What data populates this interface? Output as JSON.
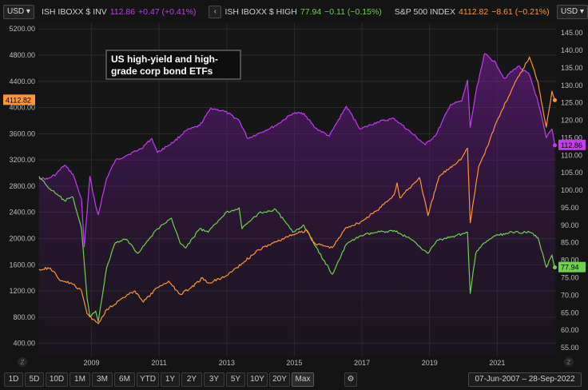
{
  "toolbar": {
    "left_currency": "USD",
    "right_currency": "USD",
    "legend": [
      {
        "name": "ISH IBOXX $ INV",
        "last": "112.86",
        "change": "+0.47 (+0.41%)",
        "color": "#c33cf0"
      },
      {
        "name": "ISH IBOXX $ HIGH",
        "last": "77.94",
        "change": "−0.11 (−0.15%)",
        "color": "#6ed24b"
      },
      {
        "name": "S&P 500 INDEX",
        "last": "4112.82",
        "change": "−8.61 (−0.21%)",
        "color": "#ff9436"
      }
    ],
    "nav_prev": "‹",
    "nav_collapse": "‹"
  },
  "bottom": {
    "ranges": [
      "1D",
      "5D",
      "10D",
      "1M",
      "3M",
      "6M",
      "YTD",
      "1Y",
      "2Y",
      "3Y",
      "5Y",
      "10Y",
      "20Y",
      "Max"
    ],
    "active_range": "Max",
    "settings_icon": "gear-icon",
    "date_range": "07-Jun-2007  –  28-Sep-2022",
    "z_left": "Z",
    "z_right": "Z"
  },
  "chart_data": {
    "type": "line",
    "annotation": "US high-yield and high-grade corp bond ETFs",
    "x_range": [
      "2007-06-07",
      "2022-09-28"
    ],
    "x_tick_labels": [
      "2009",
      "2011",
      "2013",
      "2015",
      "2017",
      "2019",
      "2021"
    ],
    "left_axis": {
      "ticks": [
        "5200.00",
        "4800.00",
        "4400.00",
        "4000.00",
        "3600.00",
        "3200.00",
        "2800.00",
        "2400.00",
        "2000.00",
        "1600.00",
        "1200.00",
        "800.00",
        "400.00"
      ],
      "range": [
        200,
        5300
      ],
      "last_label": "4112.82"
    },
    "right_axis": {
      "ticks": [
        "145.00",
        "140.00",
        "135.00",
        "130.00",
        "125.00",
        "120.00",
        "115.00",
        "110.00",
        "105.00",
        "100.00",
        "95.00",
        "90.00",
        "85.00",
        "80.00",
        "75.00",
        "70.00",
        "65.00",
        "60.00",
        "55.00"
      ],
      "range": [
        52.5,
        148
      ],
      "last_labels": [
        "112.86",
        "77.94"
      ]
    },
    "grid": true,
    "series": [
      {
        "name": "ISH IBOXX $ INV",
        "axis": "right",
        "color": "#c33cf0",
        "fill": true,
        "points": [
          [
            "2007-06",
            103.5
          ],
          [
            "2007-09",
            103.2
          ],
          [
            "2007-12",
            104.6
          ],
          [
            "2008-03",
            107.2
          ],
          [
            "2008-06",
            104.6
          ],
          [
            "2008-09",
            97.5
          ],
          [
            "2008-10",
            83.8
          ],
          [
            "2008-11",
            94.0
          ],
          [
            "2008-12",
            104.0
          ],
          [
            "2009-02",
            95.6
          ],
          [
            "2009-03",
            93.0
          ],
          [
            "2009-06",
            103.5
          ],
          [
            "2009-09",
            108.5
          ],
          [
            "2010-01",
            110.0
          ],
          [
            "2010-06",
            111.8
          ],
          [
            "2010-10",
            114.8
          ],
          [
            "2010-12",
            110.8
          ],
          [
            "2011-06",
            114.0
          ],
          [
            "2011-10",
            117.0
          ],
          [
            "2012-03",
            118.5
          ],
          [
            "2012-07",
            123.5
          ],
          [
            "2012-12",
            122.5
          ],
          [
            "2013-05",
            120.0
          ],
          [
            "2013-08",
            114.8
          ],
          [
            "2013-12",
            116.3
          ],
          [
            "2014-06",
            118.5
          ],
          [
            "2014-12",
            122.0
          ],
          [
            "2015-04",
            122.0
          ],
          [
            "2015-08",
            117.8
          ],
          [
            "2016-01",
            115.5
          ],
          [
            "2016-07",
            124.0
          ],
          [
            "2016-12",
            117.5
          ],
          [
            "2017-06",
            119.5
          ],
          [
            "2017-12",
            120.5
          ],
          [
            "2018-06",
            116.5
          ],
          [
            "2018-11",
            113.0
          ],
          [
            "2019-03",
            116.0
          ],
          [
            "2019-08",
            124.5
          ],
          [
            "2019-12",
            125.5
          ],
          [
            "2020-02",
            131.5
          ],
          [
            "2020-03",
            118.0
          ],
          [
            "2020-05",
            128.0
          ],
          [
            "2020-08",
            139.0
          ],
          [
            "2020-12",
            136.5
          ],
          [
            "2021-03",
            132.0
          ],
          [
            "2021-08",
            135.5
          ],
          [
            "2021-12",
            133.0
          ],
          [
            "2022-03",
            125.5
          ],
          [
            "2022-06",
            115.0
          ],
          [
            "2022-08",
            117.5
          ],
          [
            "2022-09",
            112.86
          ]
        ]
      },
      {
        "name": "ISH IBOXX $ HIGH",
        "axis": "right",
        "color": "#6ed24b",
        "fill": false,
        "points": [
          [
            "2007-06",
            104.0
          ],
          [
            "2007-09",
            101.0
          ],
          [
            "2007-12",
            99.0
          ],
          [
            "2008-03",
            97.0
          ],
          [
            "2008-06",
            98.0
          ],
          [
            "2008-09",
            89.0
          ],
          [
            "2008-11",
            69.0
          ],
          [
            "2008-12",
            64.0
          ],
          [
            "2009-02",
            65.5
          ],
          [
            "2009-03",
            62.5
          ],
          [
            "2009-06",
            78.0
          ],
          [
            "2009-09",
            85.0
          ],
          [
            "2010-01",
            86.0
          ],
          [
            "2010-05",
            82.0
          ],
          [
            "2010-12",
            89.0
          ],
          [
            "2011-05",
            92.0
          ],
          [
            "2011-08",
            85.0
          ],
          [
            "2011-10",
            83.5
          ],
          [
            "2012-03",
            89.0
          ],
          [
            "2012-06",
            88.0
          ],
          [
            "2012-12",
            93.5
          ],
          [
            "2013-05",
            95.0
          ],
          [
            "2013-06",
            89.0
          ],
          [
            "2013-12",
            93.5
          ],
          [
            "2014-06",
            94.5
          ],
          [
            "2014-12",
            88.0
          ],
          [
            "2015-04",
            90.0
          ],
          [
            "2015-08",
            84.0
          ],
          [
            "2016-02",
            76.0
          ],
          [
            "2016-07",
            84.5
          ],
          [
            "2016-12",
            87.0
          ],
          [
            "2017-06",
            88.0
          ],
          [
            "2017-12",
            88.5
          ],
          [
            "2018-06",
            86.0
          ],
          [
            "2018-12",
            82.0
          ],
          [
            "2019-03",
            85.5
          ],
          [
            "2019-12",
            87.5
          ],
          [
            "2020-02",
            88.0
          ],
          [
            "2020-03",
            70.5
          ],
          [
            "2020-05",
            82.0
          ],
          [
            "2020-08",
            85.0
          ],
          [
            "2020-12",
            87.0
          ],
          [
            "2021-06",
            88.0
          ],
          [
            "2021-12",
            88.0
          ],
          [
            "2022-03",
            86.5
          ],
          [
            "2022-06",
            78.0
          ],
          [
            "2022-08",
            81.5
          ],
          [
            "2022-09",
            77.94
          ]
        ]
      },
      {
        "name": "S&P 500 INDEX",
        "axis": "left",
        "color": "#ff9436",
        "fill": false,
        "points": [
          [
            "2007-06",
            1530
          ],
          [
            "2007-10",
            1550
          ],
          [
            "2008-01",
            1380
          ],
          [
            "2008-06",
            1300
          ],
          [
            "2008-09",
            1200
          ],
          [
            "2008-11",
            850
          ],
          [
            "2009-03",
            700
          ],
          [
            "2009-06",
            920
          ],
          [
            "2009-12",
            1100
          ],
          [
            "2010-04",
            1200
          ],
          [
            "2010-07",
            1030
          ],
          [
            "2010-12",
            1250
          ],
          [
            "2011-04",
            1350
          ],
          [
            "2011-08",
            1150
          ],
          [
            "2011-12",
            1250
          ],
          [
            "2012-04",
            1400
          ],
          [
            "2012-06",
            1320
          ],
          [
            "2012-12",
            1420
          ],
          [
            "2013-06",
            1620
          ],
          [
            "2013-12",
            1830
          ],
          [
            "2014-06",
            1950
          ],
          [
            "2014-12",
            2060
          ],
          [
            "2015-05",
            2120
          ],
          [
            "2015-08",
            1920
          ],
          [
            "2016-02",
            1860
          ],
          [
            "2016-07",
            2170
          ],
          [
            "2016-12",
            2250
          ],
          [
            "2017-06",
            2430
          ],
          [
            "2017-12",
            2670
          ],
          [
            "2018-01",
            2850
          ],
          [
            "2018-02",
            2620
          ],
          [
            "2018-09",
            2930
          ],
          [
            "2018-12",
            2350
          ],
          [
            "2019-04",
            2950
          ],
          [
            "2019-12",
            3230
          ],
          [
            "2020-02",
            3380
          ],
          [
            "2020-03",
            2240
          ],
          [
            "2020-06",
            3100
          ],
          [
            "2020-09",
            3400
          ],
          [
            "2020-12",
            3750
          ],
          [
            "2021-06",
            4300
          ],
          [
            "2021-12",
            4770
          ],
          [
            "2022-03",
            4400
          ],
          [
            "2022-06",
            3700
          ],
          [
            "2022-08",
            4250
          ],
          [
            "2022-09",
            4112.82
          ]
        ]
      }
    ]
  }
}
